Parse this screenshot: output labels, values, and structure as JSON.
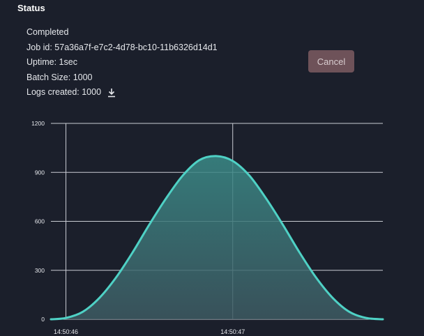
{
  "header": {
    "title": "Status"
  },
  "job": {
    "state": "Completed",
    "job_id_line": "Job id: 57a36a7f-e7c2-4d78-bc10-11b6326d14d1",
    "uptime_line": "Uptime: 1sec",
    "batch_line": "Batch Size: 1000",
    "logs_line": "Logs created: 1000"
  },
  "actions": {
    "cancel_label": "Cancel",
    "download_icon": "download-icon"
  },
  "colors": {
    "accent": "#4fd1c5",
    "cancel_bg": "#6e5259",
    "background": "#1b1f2b"
  },
  "chart_data": {
    "type": "area",
    "title": "",
    "xlabel": "",
    "ylabel": "",
    "ylim": [
      0,
      1200
    ],
    "yticks": [
      0,
      300,
      600,
      900,
      1200
    ],
    "xticks": [
      {
        "t": 0,
        "label": "14:50:46"
      },
      {
        "t": 1,
        "label": "14:50:47"
      }
    ],
    "xlim": [
      -0.09,
      1.9
    ],
    "grid": true,
    "series": [
      {
        "x": [
          -0.09,
          0,
          0.1,
          0.2,
          0.3,
          0.4,
          0.5,
          0.6,
          0.7,
          0.8,
          0.9,
          1.0,
          1.1,
          1.2,
          1.3,
          1.4,
          1.5,
          1.6,
          1.7,
          1.8,
          1.9
        ],
        "values": [
          0,
          8,
          45,
          130,
          255,
          410,
          580,
          740,
          880,
          975,
          1000,
          970,
          880,
          740,
          580,
          410,
          255,
          130,
          45,
          8,
          0
        ]
      }
    ]
  }
}
